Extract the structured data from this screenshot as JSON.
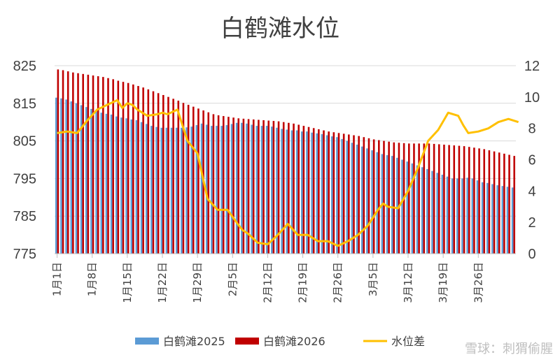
{
  "chart_data": {
    "type": "bar",
    "title": "白鹤滩水位",
    "xlabel": "",
    "ylabel": "",
    "y_left": {
      "min": 775,
      "max": 825,
      "ticks": [
        825,
        815,
        805,
        795,
        785,
        775
      ]
    },
    "y_right": {
      "min": 0,
      "max": 12,
      "ticks": [
        12,
        10,
        8,
        6,
        4,
        2,
        0
      ]
    },
    "category_labels": [
      "1月1日",
      "1月8日",
      "1月15日",
      "1月22日",
      "1月29日",
      "2月5日",
      "2月12日",
      "2月19日",
      "2月26日",
      "3月5日",
      "3月12日",
      "3月19日",
      "3月26日"
    ],
    "grid": true,
    "legend_position": "bottom",
    "colors": {
      "bar2025": "#5b9bd5",
      "bar2026": "#c00000",
      "line": "#ffc000",
      "grid": "#d9d9d9",
      "axis": "#bfbfbf"
    },
    "series": [
      {
        "name": "白鹤滩2025",
        "type": "bar",
        "axis": "left",
        "values": [
          816.5,
          816.3,
          816.0,
          815.5,
          815.0,
          814.5,
          814.0,
          813.5,
          813.0,
          812.5,
          812.2,
          812.0,
          811.5,
          811.2,
          811.0,
          810.7,
          810.5,
          810.0,
          809.5,
          809.0,
          808.7,
          808.5,
          808.5,
          808.5,
          808.5,
          808.5,
          808.6,
          808.8,
          809.2,
          809.6,
          809.3,
          809.0,
          809.0,
          809.0,
          809.2,
          809.5,
          809.8,
          809.8,
          809.6,
          809.3,
          809.0,
          809.0,
          809.0,
          808.8,
          808.5,
          808.2,
          808.0,
          807.8,
          807.8,
          807.5,
          807.5,
          807.2,
          807.0,
          806.8,
          806.5,
          806.2,
          806.0,
          805.5,
          805.0,
          804.5,
          804.0,
          803.5,
          803.0,
          802.5,
          802.0,
          801.5,
          801.2,
          801.0,
          800.5,
          800.0,
          799.5,
          799.0,
          798.5,
          798.0,
          797.5,
          797.0,
          796.5,
          796.0,
          795.5,
          795.0,
          795.0,
          795.0,
          795.2,
          795.0,
          794.5,
          794.0,
          793.8,
          793.5,
          793.2,
          793.0,
          792.8,
          792.6
        ]
      },
      {
        "name": "白鹤滩2026",
        "type": "bar",
        "axis": "left",
        "values": [
          824.0,
          823.8,
          823.5,
          823.2,
          823.0,
          822.8,
          822.6,
          822.4,
          822.2,
          822.0,
          821.7,
          821.4,
          821.0,
          820.7,
          820.4,
          820.0,
          819.6,
          819.2,
          818.7,
          818.2,
          817.7,
          817.2,
          816.7,
          816.2,
          815.7,
          815.1,
          814.6,
          814.1,
          813.6,
          813.1,
          812.6,
          812.1,
          811.8,
          811.6,
          811.4,
          811.2,
          811.0,
          810.9,
          810.8,
          810.7,
          810.6,
          810.5,
          810.4,
          810.3,
          810.2,
          810.0,
          809.8,
          809.6,
          809.3,
          809.0,
          808.7,
          808.4,
          808.1,
          807.8,
          807.5,
          807.3,
          807.1,
          806.9,
          806.7,
          806.5,
          806.3,
          806.0,
          805.7,
          805.4,
          805.2,
          805.0,
          804.8,
          804.6,
          804.5,
          804.4,
          804.3,
          804.3,
          804.3,
          804.3,
          804.3,
          804.2,
          804.1,
          804.0,
          803.9,
          803.8,
          803.7,
          803.6,
          803.4,
          803.2,
          803.0,
          802.8,
          802.5,
          802.2,
          801.9,
          801.6,
          801.3,
          801.0
        ]
      },
      {
        "name": "水位差",
        "type": "line",
        "axis": "right",
        "x_index": [
          0,
          2,
          4,
          6,
          8,
          10,
          12,
          13,
          14,
          15,
          16,
          18,
          20,
          21,
          22,
          24,
          26,
          28,
          30,
          32,
          34,
          36,
          37,
          38,
          40,
          42,
          44,
          46,
          48,
          50,
          52,
          54,
          56,
          58,
          60,
          62,
          64,
          65,
          66,
          68,
          70,
          72,
          74,
          76,
          78,
          80,
          81,
          82,
          84,
          86,
          88,
          90,
          92
        ],
        "values": [
          7.7,
          7.8,
          7.7,
          8.5,
          9.2,
          9.5,
          9.8,
          9.3,
          9.6,
          9.5,
          9.2,
          8.8,
          8.9,
          9.0,
          8.9,
          9.2,
          7.2,
          6.4,
          3.5,
          2.8,
          2.8,
          1.9,
          1.5,
          1.3,
          0.7,
          0.6,
          1.2,
          1.9,
          1.2,
          1.2,
          0.8,
          0.8,
          0.5,
          0.8,
          1.2,
          1.8,
          2.8,
          3.2,
          3.0,
          2.9,
          4.0,
          5.5,
          7.2,
          7.9,
          9.0,
          8.8,
          8.2,
          7.7,
          7.8,
          8.0,
          8.4,
          8.6,
          8.4
        ]
      }
    ]
  },
  "legend": [
    {
      "label": "白鹤滩2025",
      "color": "#5b9bd5",
      "kind": "box"
    },
    {
      "label": "白鹤滩2026",
      "color": "#c00000",
      "kind": "box"
    },
    {
      "label": "水位差",
      "color": "#ffc000",
      "kind": "line"
    }
  ],
  "watermark": "雪球：刺猬偷腥"
}
